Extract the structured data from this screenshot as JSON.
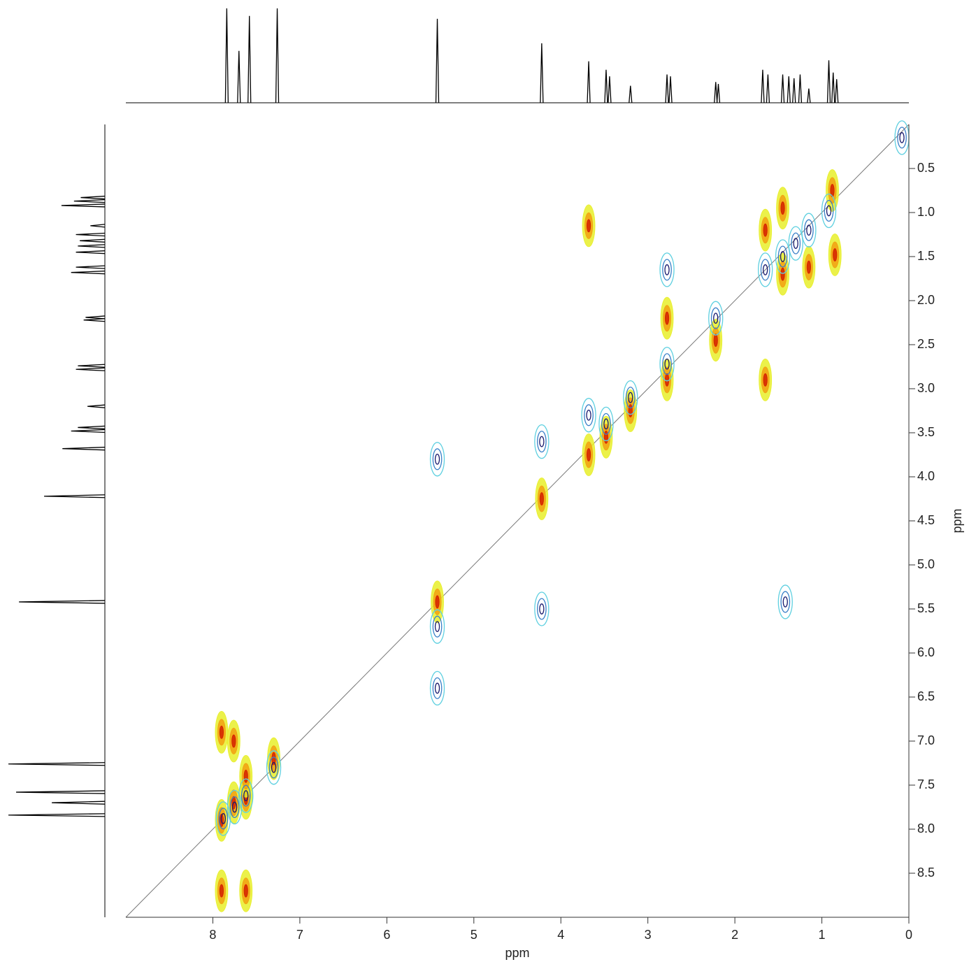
{
  "chart_data": {
    "type": "nmr2d",
    "x_label": "ppm",
    "y_label": "ppm",
    "xlim": [
      9,
      0
    ],
    "ylim": [
      0,
      9
    ],
    "xticks": [
      8,
      7,
      6,
      5,
      4,
      3,
      2,
      1,
      0
    ],
    "yticks": [
      0.5,
      {
        "value": 1,
        "label": "1.0"
      },
      1.5,
      {
        "value": 2,
        "label": "2.0"
      },
      2.5,
      {
        "value": 3,
        "label": "3.0"
      },
      3.5,
      {
        "value": 4,
        "label": "4.0"
      },
      4.5,
      {
        "value": 5,
        "label": "5.0"
      },
      5.5,
      {
        "value": 6,
        "label": "6.0"
      },
      6.5,
      {
        "value": 7,
        "label": "7.0"
      },
      7.5,
      {
        "value": 8,
        "label": "8.0"
      },
      8.5
    ],
    "spectrum": {
      "color": "#000000",
      "x": [
        7.84,
        7.7,
        7.58,
        7.26,
        5.42,
        4.22,
        3.68,
        3.48,
        3.44,
        3.2,
        2.78,
        2.74,
        2.22,
        2.19,
        1.68,
        1.62,
        1.45,
        1.38,
        1.32,
        1.25,
        1.15,
        0.92,
        0.87,
        0.83
      ],
      "values": [
        100,
        55,
        92,
        100,
        89,
        63,
        44,
        35,
        28,
        18,
        30,
        28,
        22,
        20,
        35,
        30,
        30,
        28,
        26,
        30,
        15,
        45,
        32,
        25
      ],
      "ylim": [
        0,
        100
      ]
    },
    "series": [
      {
        "colors": [
          "#e8ef2a",
          "#f2a010",
          "#d42000"
        ],
        "x": [
          7.9,
          7.76,
          7.62,
          7.3,
          5.42,
          4.22,
          3.68,
          3.48,
          3.2,
          2.78,
          2.22,
          0.88,
          1.65,
          1.45,
          1.15,
          0.85,
          1.65,
          1.45,
          7.62,
          7.76,
          7.9,
          2.78,
          3.68,
          7.62,
          7.9
        ],
        "y": [
          7.9,
          7.7,
          7.65,
          7.2,
          5.42,
          4.25,
          3.75,
          3.55,
          3.25,
          2.9,
          2.45,
          0.75,
          2.9,
          1.7,
          1.62,
          1.48,
          1.2,
          0.95,
          7.4,
          7.0,
          6.9,
          2.2,
          1.15,
          8.7,
          8.7
        ]
      },
      {
        "colors": [
          "#5fd0e0",
          "#3a80c8",
          "#1a1a6e"
        ],
        "x": [
          7.88,
          7.75,
          7.62,
          7.3,
          5.42,
          4.22,
          3.68,
          3.48,
          3.2,
          2.78,
          2.78,
          2.22,
          1.65,
          1.45,
          1.3,
          1.15,
          0.92,
          0.08,
          5.42,
          4.22,
          1.42,
          5.42
        ],
        "y": [
          7.88,
          7.75,
          7.62,
          7.3,
          5.7,
          3.6,
          3.3,
          3.4,
          3.1,
          2.72,
          1.65,
          2.2,
          1.65,
          1.5,
          1.35,
          1.2,
          0.98,
          0.15,
          6.4,
          5.5,
          5.42,
          3.8
        ]
      }
    ]
  }
}
